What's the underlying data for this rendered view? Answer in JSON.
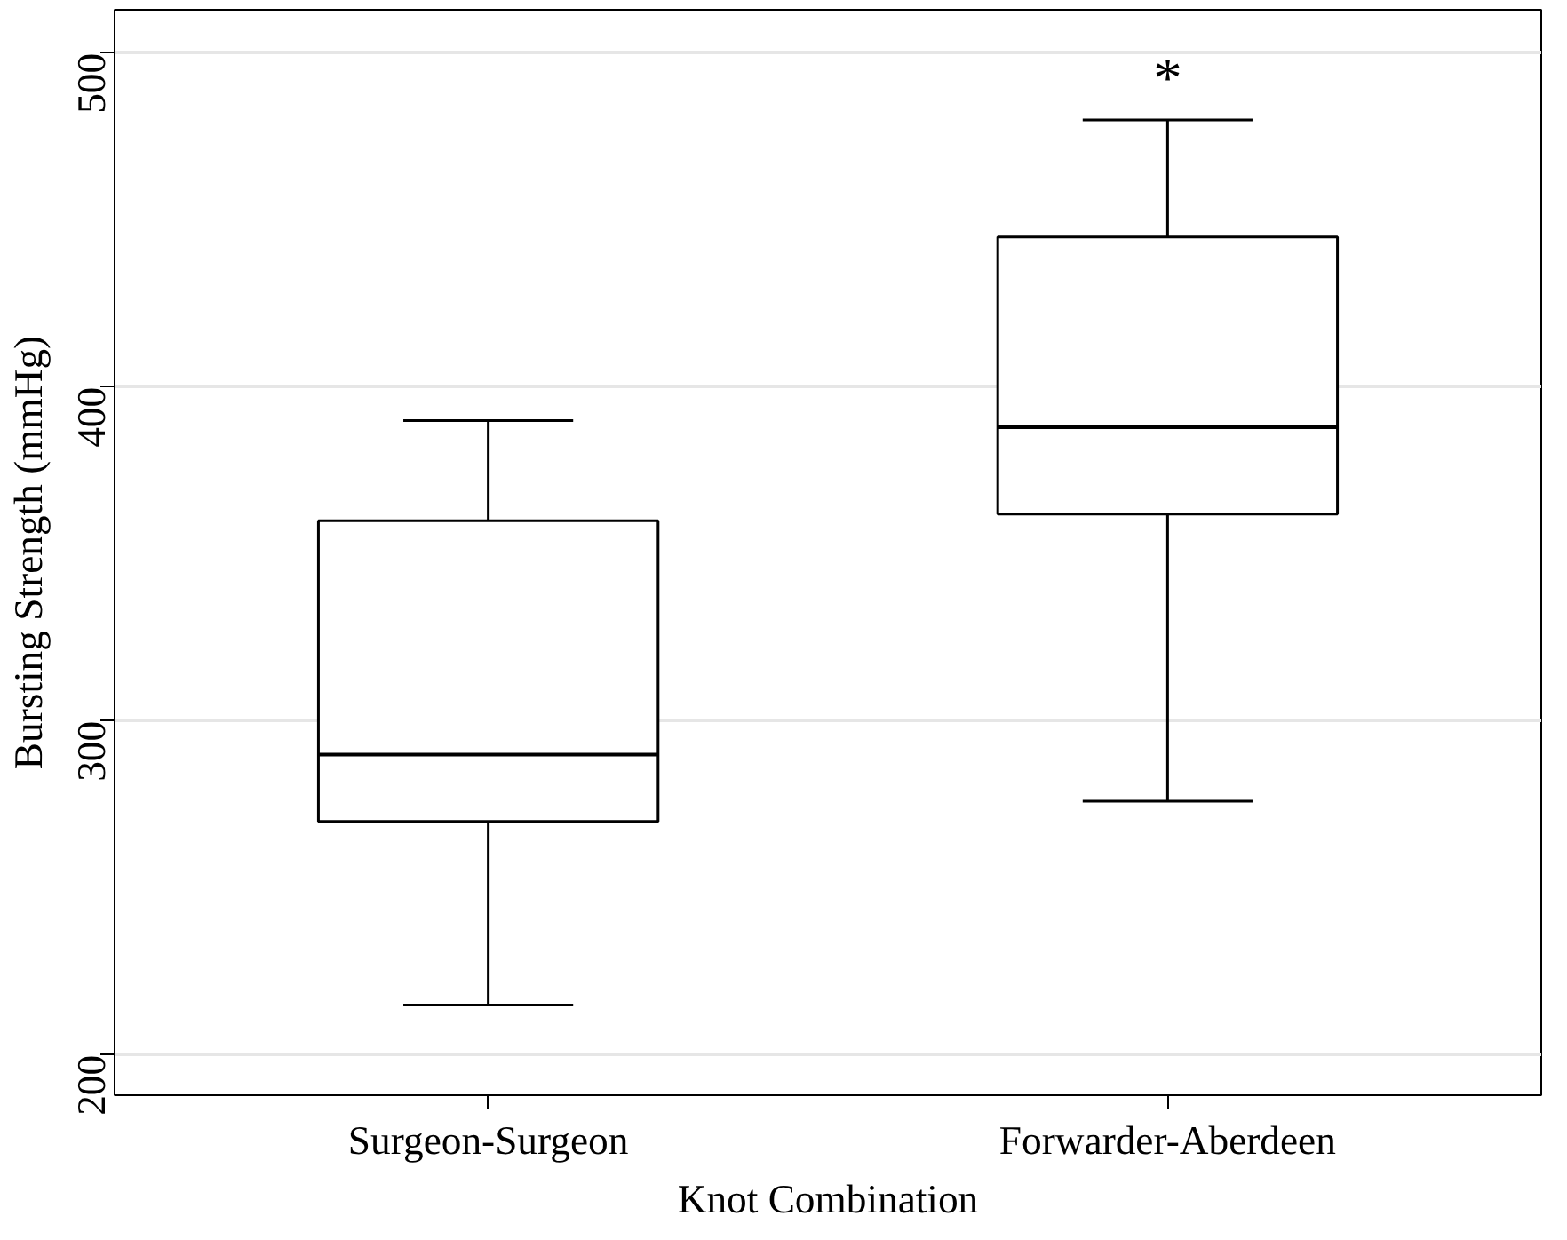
{
  "chart_data": {
    "type": "box",
    "xlabel": "Knot Combination",
    "ylabel": "Bursting Strength (mmHg)",
    "categories": [
      "Surgeon-Surgeon",
      "Forwarder-Aberdeen"
    ],
    "boxes": [
      {
        "low": 215,
        "q1": 270,
        "median": 290,
        "q3": 360,
        "high": 390
      },
      {
        "low": 276,
        "q1": 362,
        "median": 388,
        "q3": 445,
        "high": 480
      }
    ],
    "ylim": [
      188,
      513
    ],
    "yticks": [
      200,
      300,
      400,
      500
    ],
    "grid": "y",
    "annotations": [
      "*"
    ]
  }
}
